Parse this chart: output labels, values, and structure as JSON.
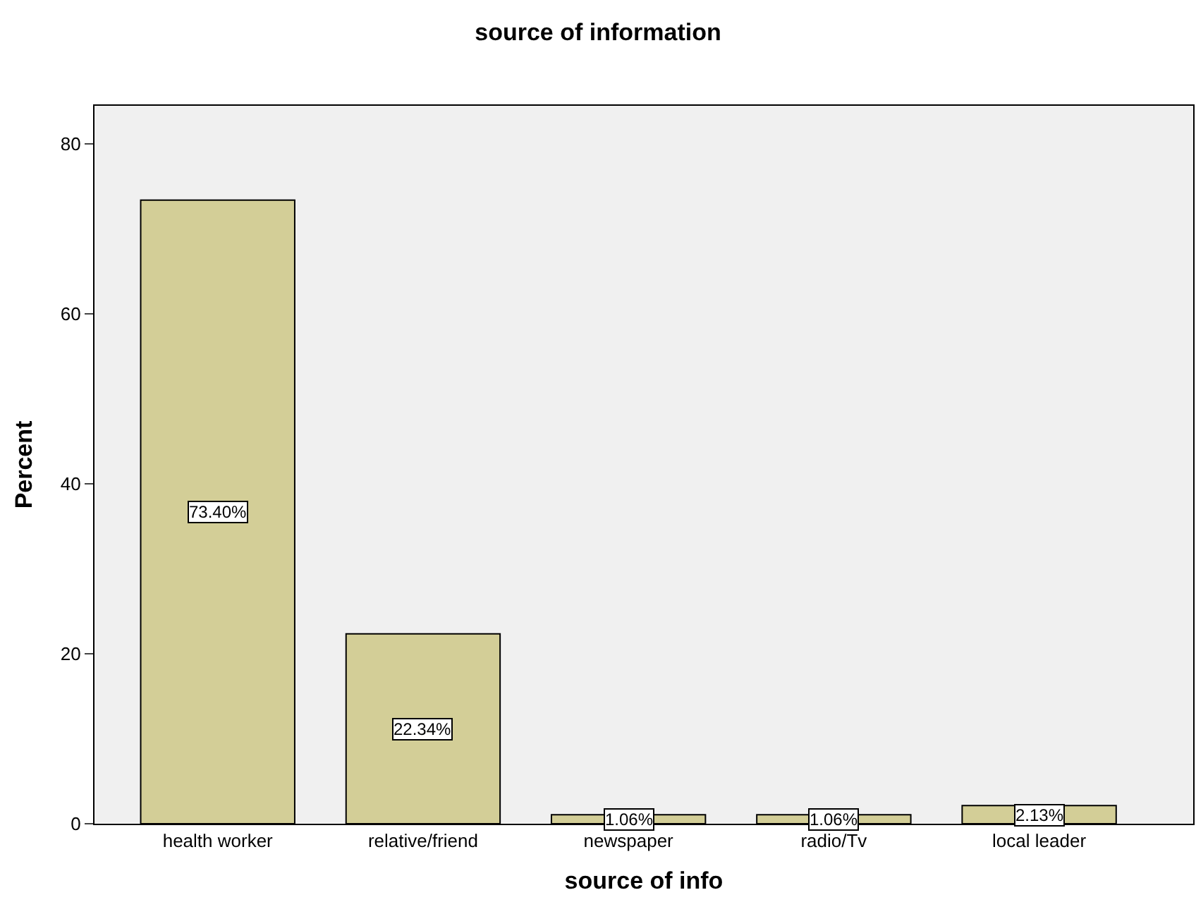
{
  "chart_data": {
    "type": "bar",
    "title": "source of information",
    "xlabel": "source of info",
    "ylabel": "Percent",
    "categories": [
      "health worker",
      "relative/friend",
      "newspaper",
      "radio/Tv",
      "local leader"
    ],
    "values": [
      73.4,
      22.34,
      1.06,
      1.06,
      2.13
    ],
    "value_labels": [
      "73.40%",
      "22.34%",
      "1.06%",
      "1.06%",
      "2.13%"
    ],
    "color": "#d3ce97",
    "ylim": [
      0,
      84.5
    ],
    "yticks": [
      0,
      20,
      40,
      60,
      80
    ],
    "grid": false
  }
}
